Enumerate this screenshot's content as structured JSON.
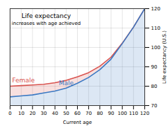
{
  "chart_data": {
    "type": "area",
    "title": "Life expectancy",
    "subtitle": "increases with age achieved",
    "x_label": "Current age",
    "y_label": "Life expectancy (U.S.)",
    "x": [
      0,
      10,
      20,
      30,
      40,
      50,
      60,
      70,
      80,
      90,
      100,
      110,
      120
    ],
    "series": [
      {
        "name": "Female",
        "color": "#d9534f",
        "values": [
          80,
          80.3,
          80.6,
          81,
          81.8,
          83,
          84.8,
          87,
          90.3,
          95,
          102.2,
          110.5,
          120
        ]
      },
      {
        "name": "Male",
        "color": "#3b78c2",
        "values": [
          74.5,
          75,
          75.5,
          76.5,
          77.5,
          79,
          81.5,
          84.5,
          88.5,
          94,
          102,
          110.5,
          120
        ]
      }
    ],
    "xlim": [
      0,
      120
    ],
    "ylim": [
      70,
      120
    ],
    "xticks": [
      0,
      10,
      20,
      30,
      40,
      50,
      60,
      70,
      80,
      90,
      100,
      110,
      120
    ],
    "yticks": [
      70,
      80,
      90,
      100,
      110,
      120
    ],
    "grid": true
  }
}
